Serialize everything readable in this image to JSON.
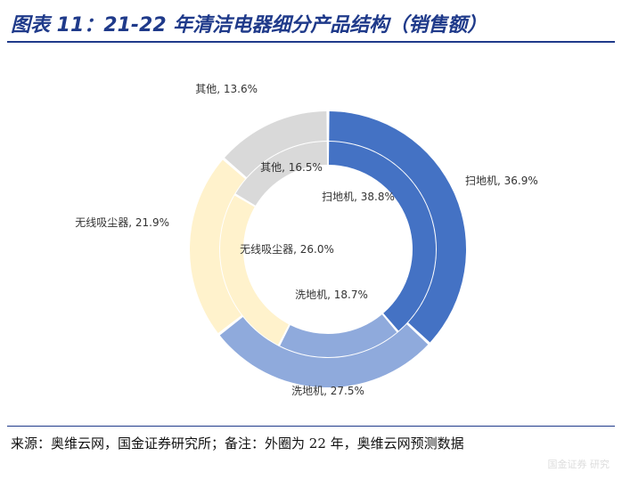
{
  "title": "图表 11：21-22 年清洁电器细分产品结构（销售额）",
  "chart_data": [
    {
      "type": "pie",
      "ring": "outer",
      "categories": [
        "扫地机",
        "洗地机",
        "无线吸尘器",
        "其他"
      ],
      "values": [
        36.9,
        27.5,
        21.9,
        13.6
      ],
      "labels": [
        "扫地机, 36.9%",
        "洗地机, 27.5%",
        "无线吸尘器, 21.9%",
        "其他, 13.6%"
      ],
      "colors": [
        "#4472c4",
        "#8faadc",
        "#fff2cc",
        "#d9d9d9"
      ]
    },
    {
      "type": "pie",
      "ring": "inner",
      "categories": [
        "扫地机",
        "洗地机",
        "无线吸尘器",
        "其他"
      ],
      "values": [
        38.8,
        18.7,
        26.0,
        16.5
      ],
      "labels": [
        "扫地机, 38.8%",
        "洗地机, 18.7%",
        "无线吸尘器, 26.0%",
        "其他, 16.5%"
      ],
      "colors": [
        "#4472c4",
        "#8faadc",
        "#fff2cc",
        "#d9d9d9"
      ]
    }
  ],
  "footer": "来源：奥维云网，国金证券研究所；备注：外圈为 22 年，奥维云网预测数据",
  "watermark": "国金证券 研究"
}
